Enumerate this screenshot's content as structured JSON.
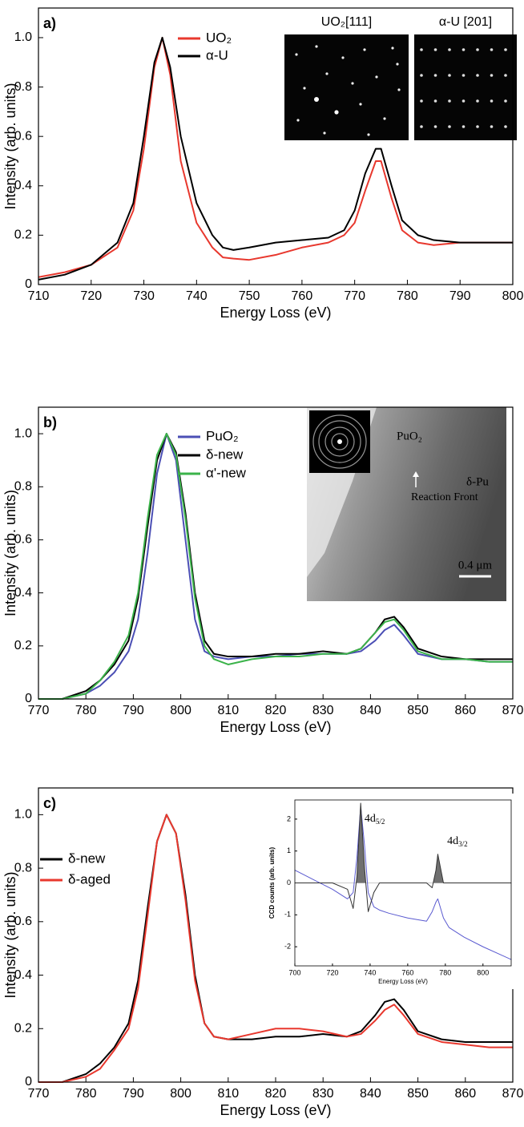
{
  "chart_data": [
    {
      "type": "line",
      "panel_label": "a)",
      "xlabel": "Energy Loss (eV)",
      "ylabel": "Intensity (arb. units)",
      "xlim": [
        710,
        800
      ],
      "xticks": [
        710,
        720,
        730,
        740,
        750,
        760,
        770,
        780,
        790,
        800
      ],
      "ylim": [
        0,
        1.12
      ],
      "yticks": [
        0,
        0.2,
        0.4,
        0.6,
        0.8,
        {
          "value": 1,
          "label": "1.0"
        }
      ],
      "x": [
        710,
        715,
        720,
        725,
        728,
        730,
        732,
        733.5,
        735,
        737,
        740,
        743,
        745,
        747,
        750,
        755,
        760,
        765,
        768,
        770,
        772,
        774,
        775,
        777,
        779,
        782,
        785,
        790,
        795,
        800
      ],
      "series": [
        {
          "name": "UO₂",
          "color": "#e8382e",
          "values": [
            0.03,
            0.05,
            0.08,
            0.15,
            0.3,
            0.55,
            0.88,
            1.0,
            0.85,
            0.5,
            0.25,
            0.15,
            0.11,
            0.105,
            0.1,
            0.12,
            0.15,
            0.17,
            0.2,
            0.25,
            0.38,
            0.5,
            0.5,
            0.35,
            0.22,
            0.17,
            0.16,
            0.17,
            0.17,
            0.17
          ]
        },
        {
          "name": "α-U",
          "color": "#000000",
          "values": [
            0.02,
            0.04,
            0.08,
            0.17,
            0.33,
            0.6,
            0.9,
            1.0,
            0.88,
            0.6,
            0.33,
            0.2,
            0.15,
            0.14,
            0.15,
            0.17,
            0.18,
            0.19,
            0.22,
            0.3,
            0.45,
            0.55,
            0.55,
            0.4,
            0.26,
            0.2,
            0.18,
            0.17,
            0.17,
            0.17
          ]
        }
      ],
      "legend": true,
      "image_titles": [
        "UO₂[111]",
        "α-U [201]"
      ]
    },
    {
      "type": "line",
      "panel_label": "b)",
      "xlabel": "Energy Loss (eV)",
      "ylabel": "Intensity (arb. units)",
      "xlim": [
        770,
        870
      ],
      "xticks": [
        770,
        780,
        790,
        800,
        810,
        820,
        830,
        840,
        850,
        860,
        870
      ],
      "ylim": [
        0,
        1.1
      ],
      "yticks": [
        0,
        0.2,
        0.4,
        0.6,
        0.8,
        {
          "value": 1,
          "label": "1.0"
        }
      ],
      "x": [
        770,
        775,
        780,
        783,
        786,
        789,
        791,
        793,
        795,
        797,
        799,
        801,
        803,
        805,
        807,
        810,
        815,
        820,
        825,
        830,
        835,
        838,
        841,
        843,
        845,
        847,
        850,
        855,
        860,
        865,
        870
      ],
      "series": [
        {
          "name": "PuO₂",
          "color": "#4b4fb5",
          "values": [
            0,
            0,
            0.02,
            0.05,
            0.1,
            0.18,
            0.3,
            0.55,
            0.85,
            1.0,
            0.9,
            0.6,
            0.3,
            0.18,
            0.16,
            0.15,
            0.16,
            0.16,
            0.17,
            0.17,
            0.17,
            0.18,
            0.22,
            0.26,
            0.28,
            0.24,
            0.17,
            0.15,
            0.15,
            0.14,
            0.14
          ]
        },
        {
          "name": "δ-new",
          "color": "#000000",
          "values": [
            0,
            0,
            0.03,
            0.07,
            0.13,
            0.22,
            0.38,
            0.65,
            0.9,
            1.0,
            0.93,
            0.7,
            0.4,
            0.22,
            0.17,
            0.16,
            0.16,
            0.17,
            0.17,
            0.18,
            0.17,
            0.19,
            0.25,
            0.3,
            0.31,
            0.27,
            0.19,
            0.16,
            0.15,
            0.15,
            0.15
          ]
        },
        {
          "name": "α'-new",
          "color": "#3bb34a",
          "values": [
            0,
            0,
            0.02,
            0.07,
            0.14,
            0.24,
            0.4,
            0.68,
            0.92,
            1.0,
            0.92,
            0.68,
            0.38,
            0.2,
            0.15,
            0.13,
            0.15,
            0.16,
            0.16,
            0.17,
            0.17,
            0.19,
            0.25,
            0.29,
            0.3,
            0.26,
            0.18,
            0.15,
            0.15,
            0.14,
            0.14
          ]
        }
      ],
      "legend": true,
      "image_labels": {
        "oxide": "PuO₂",
        "metal": "δ-Pu",
        "front": "Reaction Front",
        "scale": "0.4 μm"
      }
    },
    {
      "type": "line",
      "panel_label": "c)",
      "xlabel": "Energy Loss (eV)",
      "ylabel": "Intensity (arb. units)",
      "xlim": [
        770,
        870
      ],
      "xticks": [
        770,
        780,
        790,
        800,
        810,
        820,
        830,
        840,
        850,
        860,
        870
      ],
      "ylim": [
        0,
        1.1
      ],
      "yticks": [
        0,
        0.2,
        0.4,
        0.6,
        0.8,
        {
          "value": 1,
          "label": "1.0"
        }
      ],
      "x": [
        770,
        775,
        780,
        783,
        786,
        789,
        791,
        793,
        795,
        797,
        799,
        801,
        803,
        805,
        807,
        810,
        815,
        820,
        825,
        830,
        835,
        838,
        841,
        843,
        845,
        847,
        850,
        855,
        860,
        865,
        870
      ],
      "series": [
        {
          "name": "δ-new",
          "color": "#000000",
          "values": [
            0,
            0,
            0.03,
            0.07,
            0.13,
            0.22,
            0.38,
            0.65,
            0.9,
            1.0,
            0.93,
            0.7,
            0.4,
            0.22,
            0.17,
            0.16,
            0.16,
            0.17,
            0.17,
            0.18,
            0.17,
            0.19,
            0.25,
            0.3,
            0.31,
            0.27,
            0.19,
            0.16,
            0.15,
            0.15,
            0.15
          ]
        },
        {
          "name": "δ-aged",
          "color": "#e8382e",
          "values": [
            0,
            0,
            0.02,
            0.05,
            0.12,
            0.2,
            0.35,
            0.62,
            0.9,
            1.0,
            0.93,
            0.68,
            0.38,
            0.22,
            0.17,
            0.16,
            0.18,
            0.2,
            0.2,
            0.19,
            0.17,
            0.18,
            0.23,
            0.27,
            0.29,
            0.25,
            0.18,
            0.15,
            0.14,
            0.13,
            0.13
          ]
        }
      ],
      "legend": true
    },
    {
      "type": "line",
      "xlabel": "Energy Loss (eV)",
      "ylabel": "CCD counts (arb. units)",
      "xlim": [
        700,
        815
      ],
      "xticks": [
        700,
        720,
        740,
        760,
        780,
        800
      ],
      "ylim": [
        -2.6,
        2.6
      ],
      "yticks": [
        -2,
        -1,
        0,
        1,
        2
      ],
      "x": [
        700,
        710,
        720,
        728,
        731,
        733,
        735,
        737,
        739,
        742,
        745,
        750,
        760,
        770,
        773,
        775,
        776,
        778,
        779,
        782,
        790,
        800,
        815
      ],
      "series": [
        {
          "color": "#5a5ad0",
          "values": [
            0.4,
            0.1,
            -0.2,
            -0.5,
            -0.3,
            0.8,
            2.4,
            1.2,
            -0.3,
            -0.75,
            -0.85,
            -0.95,
            -1.1,
            -1.2,
            -0.9,
            -0.6,
            -0.5,
            -0.9,
            -1.1,
            -1.4,
            -1.7,
            -2.0,
            -2.4
          ]
        },
        {
          "color": "#333333",
          "fill_above_zero": "#707070",
          "values": [
            0,
            0,
            0,
            -0.2,
            -0.8,
            0.2,
            2.5,
            0.5,
            -0.9,
            -0.3,
            0,
            0,
            0,
            0,
            -0.15,
            0.4,
            0.9,
            0.3,
            0,
            0,
            0,
            0,
            0
          ]
        }
      ],
      "annotations": [
        {
          "base": "4d",
          "sub": "5/2"
        },
        {
          "base": "4d",
          "sub": "3/2"
        }
      ]
    }
  ]
}
